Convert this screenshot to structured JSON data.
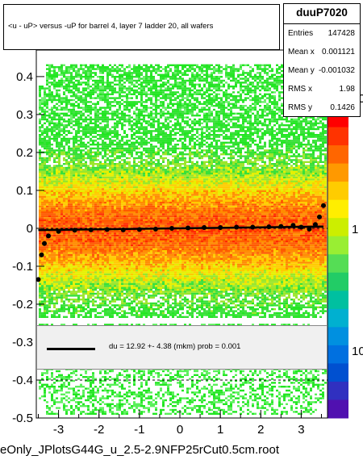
{
  "chart_data": {
    "type": "heatmap",
    "title": "<u - uP>       versus  -uP for barrel 4, layer 7 ladder 20, all  wafers",
    "x_ticks": [
      "-3",
      "-2",
      "-1",
      "0",
      "1",
      "2",
      "3"
    ],
    "x_tick_values": [
      -3,
      -2,
      -1,
      0,
      1,
      2,
      3
    ],
    "y_ticks": [
      "0.4",
      "0.3",
      "0.2",
      "0.1",
      "0",
      "-0.1",
      "-0.2",
      "-0.3",
      "-0.4",
      "-0.5"
    ],
    "y_tick_values": [
      0.4,
      0.3,
      0.2,
      0.1,
      0,
      -0.1,
      -0.2,
      -0.3,
      -0.4,
      -0.5
    ],
    "xlim": [
      -3.55,
      3.65
    ],
    "ylim": [
      -0.5,
      0.47
    ],
    "z_ticks": [
      "10",
      "1",
      "10"
    ],
    "z_tick_values": [
      10,
      1,
      10
    ],
    "profile": {
      "x": [
        -3.5,
        -3.42,
        -3.35,
        -3.25,
        -3.0,
        -2.6,
        -2.2,
        -1.8,
        -1.4,
        -1.0,
        -0.6,
        -0.2,
        0.2,
        0.6,
        1.0,
        1.4,
        1.8,
        2.2,
        2.5,
        2.8,
        3.0,
        3.2,
        3.35,
        3.45,
        3.55
      ],
      "y": [
        -0.135,
        -0.07,
        -0.04,
        -0.02,
        -0.008,
        -0.005,
        -0.004,
        -0.003,
        -0.004,
        -0.003,
        -0.002,
        0.0,
        0.001,
        0.002,
        0.002,
        0.003,
        0.003,
        0.004,
        0.005,
        0.008,
        0.003,
        -0.002,
        0.01,
        0.03,
        0.06
      ]
    },
    "fit": {
      "slope_label": "du =",
      "value": "12.92 +-  4.38 (mkm) prob = 0.001",
      "slope": 0.001292,
      "intercept": 0.0
    },
    "gaps_y": [
      [
        -0.345,
        -0.33
      ],
      [
        -0.25,
        -0.235
      ]
    ]
  },
  "stats": {
    "name": "duuP7020",
    "rows": [
      {
        "key": "Entries",
        "value": "147428"
      },
      {
        "key": "Mean x",
        "value": "0.001121"
      },
      {
        "key": "Mean y",
        "value": "-0.001032"
      },
      {
        "key": "RMS x",
        "value": "1.98"
      },
      {
        "key": "RMS y",
        "value": "0.1426"
      }
    ]
  },
  "fit_label": "du =    12.92 +-   4.38 (mkm) prob = 0.001",
  "footer": "eOnly_JPlotsG44G_u_2.5-2.9NFP25rCut0.5cm.root"
}
